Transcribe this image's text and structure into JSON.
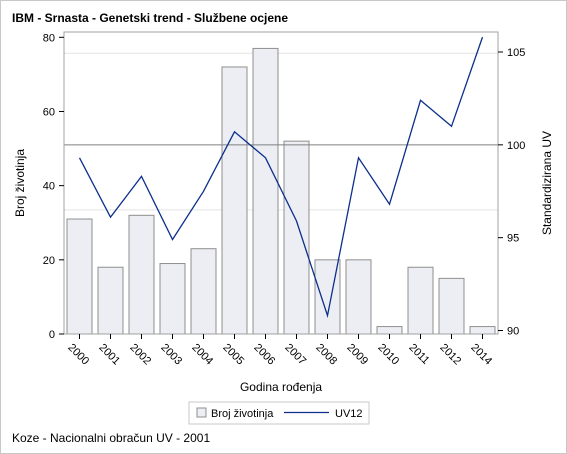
{
  "title": "IBM - Srnasta - Genetski trend - Službene ocjene",
  "footnote": "Koze - Nacionalni obračun UV - 2001",
  "colors": {
    "bar_fill": "#eceef3",
    "bar_stroke": "#8f8f8f",
    "line": "#0b2f8c",
    "frame": "#a0a0a0",
    "gridline": "#e4e4e4",
    "refline": "#808080"
  },
  "chart_data": {
    "type": "bar",
    "xlabel": "Godina rođenja",
    "ylabel": "Broj životinja",
    "y2label": "Standardizirana UV",
    "categories": [
      "2000",
      "2001",
      "2002",
      "2003",
      "2004",
      "2005",
      "2006",
      "2007",
      "2008",
      "2009",
      "2010",
      "2011",
      "2012",
      "2014"
    ],
    "ylim": [
      0,
      80
    ],
    "yticks": [
      0,
      20,
      40,
      60,
      80
    ],
    "y2lim": [
      90,
      105
    ],
    "y2ticks": [
      90,
      95,
      100,
      105
    ],
    "reference_line_y2": 100,
    "series": [
      {
        "name": "Broj životinja",
        "type": "bar",
        "axis": "left",
        "values": [
          31,
          18,
          32,
          19,
          23,
          72,
          77,
          52,
          20,
          20,
          2,
          18,
          15,
          2
        ]
      },
      {
        "name": "UV12",
        "type": "line",
        "axis": "right",
        "values": [
          99.3,
          96.1,
          98.3,
          94.9,
          97.5,
          100.7,
          99.3,
          95.9,
          90.8,
          99.3,
          96.8,
          102.4,
          101.0,
          105.8
        ]
      }
    ],
    "legend_position": "bottom",
    "grid": true
  }
}
